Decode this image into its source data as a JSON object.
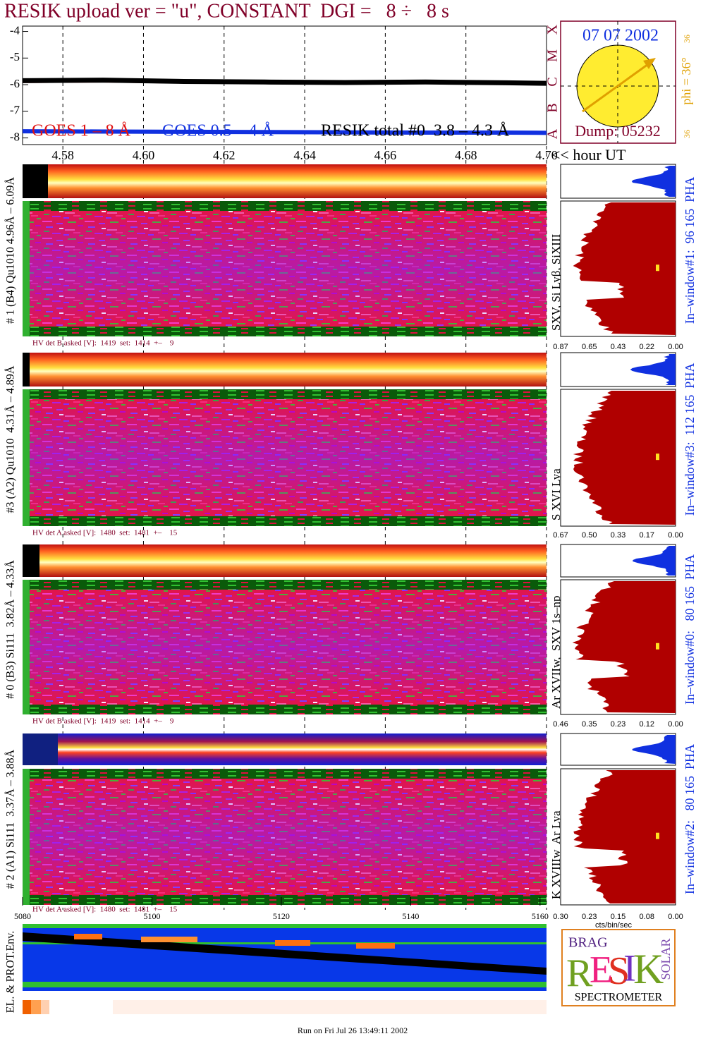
{
  "title": "RESIK upload ver = \"u\", CONSTANT  DGI =   8 ÷   8 s",
  "chart_data": {
    "type": "line",
    "x": [
      4.57,
      4.59,
      4.61,
      4.63,
      4.65,
      4.67,
      4.69,
      4.7
    ],
    "series": [
      {
        "name": "GOES 1 – 8 Å",
        "color": "#e01010",
        "values": [
          -5.9,
          -5.88,
          -5.92,
          -5.93,
          -5.95,
          -5.93,
          -5.96,
          -5.98
        ]
      },
      {
        "name": "GOES 0.5 – 4 Å",
        "color": "#1030e0",
        "values": [
          -7.75,
          -7.76,
          -7.77,
          -7.78,
          -7.79,
          -7.8,
          -7.8,
          -7.81
        ]
      },
      {
        "name": "RESIK total #0  3.8 – 4.3 Å",
        "color": "#000000",
        "values": [
          -5.85,
          -5.83,
          -5.88,
          -5.9,
          -5.92,
          -5.9,
          -5.93,
          -5.95
        ]
      }
    ],
    "xlim": [
      4.57,
      4.7
    ],
    "xticks": [
      4.58,
      {
        "value": 4.6,
        "label": "4.60"
      },
      4.62,
      4.64,
      4.66,
      4.68,
      {
        "value": 4.7,
        "label": "4.70"
      }
    ],
    "x_label": "<< hour UT",
    "ylim": [
      -3.8,
      -8.25
    ],
    "yticks": [
      -4,
      -5,
      -6,
      -7,
      -8
    ],
    "grid": true
  },
  "sun": {
    "date": "07 07 2002",
    "dump": "Dump: 05232",
    "phi": "phi = 36°",
    "top": "36",
    "bottom": "36",
    "classes": [
      "X",
      "M",
      "C",
      "B",
      "A"
    ]
  },
  "panels": [
    {
      "label": "# 1 (B4) Qu1010 4.96Å – 6.09Å",
      "lines": "SXV, Si Lyβ, SiXIII",
      "window": "In–window#1:  96 165  PHA",
      "hv": "HV det B asked [V]:  1419  set:  1414  +–    9",
      "pha_ticks": [
        "0.87",
        "0.65",
        "0.43",
        "0.22",
        "0.00"
      ]
    },
    {
      "label": "#3 (A2) Qu1010  4.31Å – 4.89Å",
      "lines": "S XVI Lya",
      "window": "In–window#3:  112 165  PHA",
      "hv": "HV det A asked [V]:  1480  set:  1481  +–    15",
      "pha_ticks": [
        "0.67",
        "0.50",
        "0.33",
        "0.17",
        "0.00"
      ]
    },
    {
      "label": "# 0 (B3) Si111  3.82Å – 4.33Å",
      "lines": "Ar XVIIw,  SXV 1s–np",
      "window": "In–window#0:   80 165  PHA",
      "hv": "HV det B asked [V]:  1419  set:  1414  +–    9",
      "pha_ticks": [
        "0.46",
        "0.35",
        "0.23",
        "0.12",
        "0.00"
      ]
    },
    {
      "label": "# 2 (A1) Si111  3.37Å – 3.88Å",
      "lines": "K XVIIIw  Ar Lya",
      "window": "In–window#2:   80 165  PHA",
      "hv": "HV det A asked [V]:  1480  set:  1481  +–    15",
      "pha_ticks": [
        "0.30",
        "0.23",
        "0.15",
        "0.08",
        "0.00"
      ]
    }
  ],
  "bottom_axis": {
    "ticks": [
      5080,
      5100,
      5120,
      5140,
      5160
    ],
    "lim": [
      5080,
      5161
    ]
  },
  "pha_unit": "cts/bin/sec",
  "env_label": "EL. & PROT.Env.",
  "logo": {
    "brag": "BRAG",
    "resik": [
      "R",
      "E",
      "S",
      "I",
      "K"
    ],
    "solar": "SOLAR",
    "name": "SPECTROMETER"
  },
  "footer": "Run on Fri Jul 26 13:49:11 2002"
}
